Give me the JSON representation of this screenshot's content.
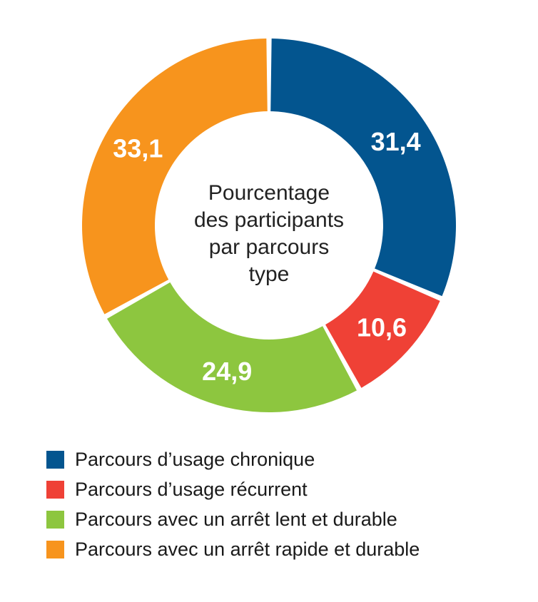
{
  "chart_data": {
    "type": "pie",
    "variant": "donut",
    "center_label": [
      "Pourcentage",
      "des participants",
      "par parcours",
      "type"
    ],
    "categories": [
      "Parcours d’usage chronique",
      "Parcours d’usage récurrent",
      "Parcours avec un arrêt lent et durable",
      "Parcours avec un arrêt rapide et durable"
    ],
    "values": [
      31.4,
      10.6,
      24.9,
      33.1
    ],
    "value_labels": [
      "31,4",
      "10,6",
      "24,9",
      "33,1"
    ],
    "colors": [
      "#03558f",
      "#ef4136",
      "#8dc63f",
      "#f7941d"
    ],
    "start_angle_deg": 0,
    "direction": "clockwise",
    "legend_position": "bottom-left"
  }
}
